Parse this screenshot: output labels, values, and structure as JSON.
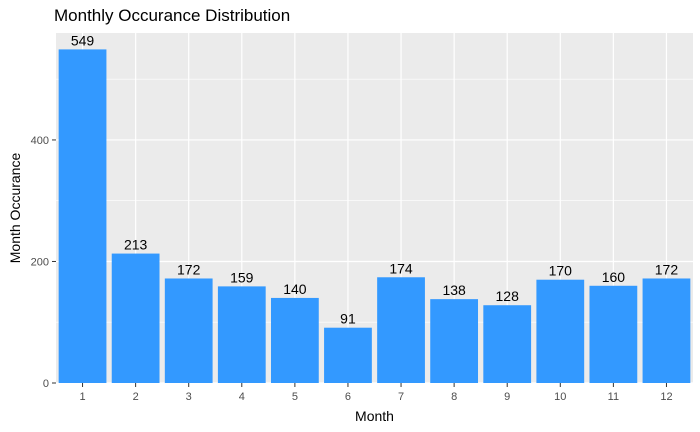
{
  "chart_data": {
    "type": "bar",
    "title": "Monthly Occurance Distribution",
    "xlabel": "Month",
    "ylabel": "Month Occurance",
    "categories": [
      "1",
      "2",
      "3",
      "4",
      "5",
      "6",
      "7",
      "8",
      "9",
      "10",
      "11",
      "12"
    ],
    "values": [
      549,
      213,
      172,
      159,
      140,
      91,
      174,
      138,
      128,
      170,
      160,
      172
    ],
    "y_ticks": [
      0,
      200,
      400
    ],
    "ylim": [
      0,
      576
    ],
    "grid": true,
    "colors": {
      "bar": "#3399FF",
      "panel_background": "#EBEBEB",
      "grid": "#FFFFFF"
    }
  }
}
